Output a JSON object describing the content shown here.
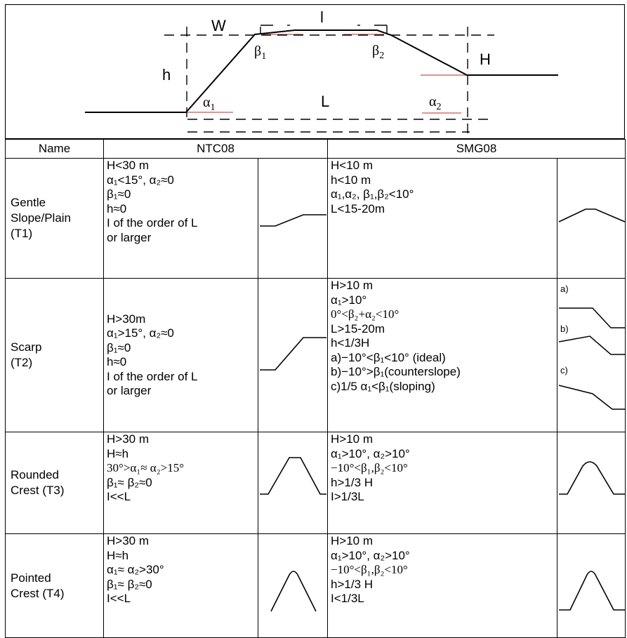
{
  "diagram": {
    "labels": {
      "W": "W",
      "l": "l",
      "h": "h",
      "H": "H",
      "L": "L",
      "beta1": "β",
      "beta1_sub": "1",
      "beta2": "β",
      "beta2_sub": "2",
      "alpha1": "α",
      "alpha1_sub": "1",
      "alpha2": "α",
      "alpha2_sub": "2"
    }
  },
  "table": {
    "headers": {
      "name": "Name",
      "ntc": "NTC08",
      "smg": "SMG08"
    },
    "rows": [
      {
        "key": "t1",
        "name": [
          "Gentle",
          "Slope/Plain",
          "(T1)"
        ],
        "ntc": [
          "H<30 m",
          "α₁<15°, α₂≈0",
          "β₁≈0",
          "h≈0",
          "I of the order of L",
          "or larger"
        ],
        "smg": [
          "H<10 m",
          "h<10 m",
          "α₁,α₂, β₁,β₂<10°",
          "L<15-20m"
        ]
      },
      {
        "key": "t2",
        "name": [
          "Scarp",
          "(T2)"
        ],
        "ntc": [
          "H>30m",
          "α₁>15°, α₂≈0",
          "β₁≈0",
          "h≈0",
          "I of the order of L",
          "or larger"
        ],
        "smg": [
          "H>10 m",
          "α₁>10°",
          "0°<β₂+α₂<10°",
          "L>15-20m",
          "h<1/3H",
          "a)−10°<β₁<10°   (ideal)",
          "b)−10°>β₁(counterslope)",
          "c)1/5 α₁<β₁(sloping)"
        ],
        "smg_variants": [
          "a)",
          "b)",
          "c)"
        ]
      },
      {
        "key": "t3",
        "name": [
          "Rounded",
          "Crest (T3)"
        ],
        "ntc": [
          "H>30 m",
          "H≈h",
          "30°>α₁≈ α₂>15°",
          "β₁≈ β₂≈0",
          "I<<L"
        ],
        "smg": [
          "H>10 m",
          "α₁>10°, α₂>10°",
          "−10°<β₁,β₂<10°",
          "h>1/3 H",
          "I>1/3L"
        ]
      },
      {
        "key": "t4",
        "name": [
          "Pointed",
          "Crest (T4)"
        ],
        "ntc": [
          "H>30 m",
          "H≈h",
          "α₁≈ α₂>30°",
          "β₁≈ β₂≈0",
          "I<<L"
        ],
        "smg": [
          "H>10 m",
          "α₁>10°, α₂>10°",
          "−10°<β₁,β₂<10°",
          "h>1/3 H",
          "I<1/3L"
        ]
      }
    ]
  }
}
